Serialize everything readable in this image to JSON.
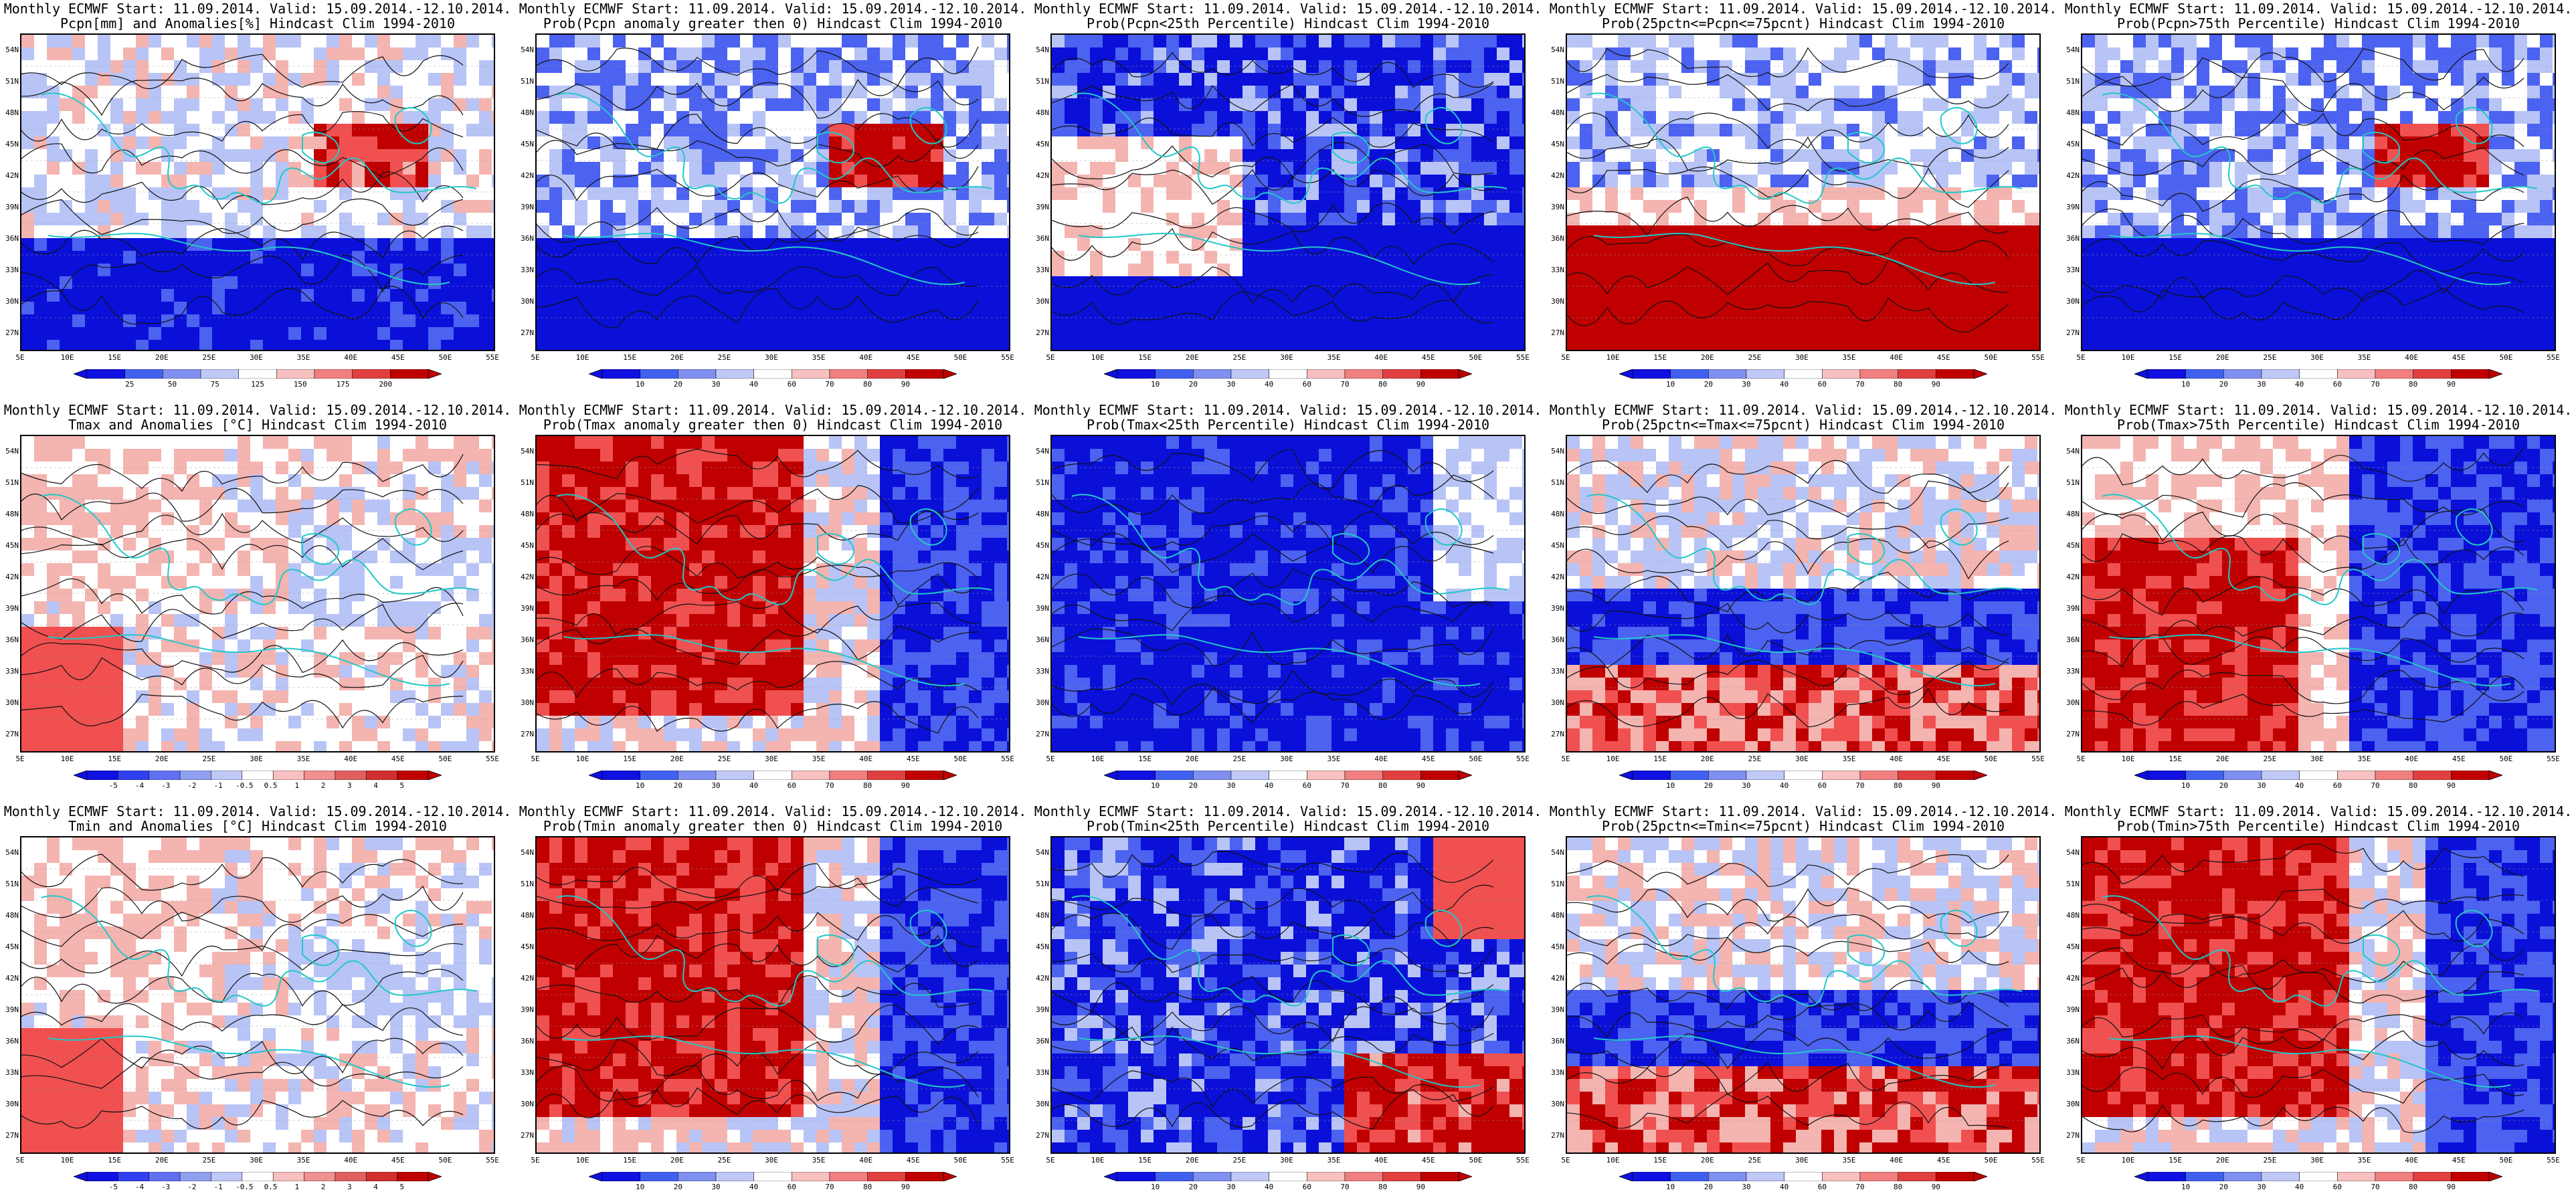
{
  "header_prefix": "Monthly ECMWF Start: 11.09.2014. Valid: 15.09.2014.-12.10.2014.",
  "lat_labels": [
    "54N",
    "51N",
    "48N",
    "45N",
    "42N",
    "39N",
    "36N",
    "33N",
    "30N",
    "27N"
  ],
  "lon_labels": [
    "5E",
    "10E",
    "15E",
    "20E",
    "25E",
    "30E",
    "35E",
    "40E",
    "45E",
    "50E",
    "55E"
  ],
  "colorbar_prob_labels": [
    "10",
    "20",
    "30",
    "40",
    "60",
    "70",
    "80",
    "90"
  ],
  "colorbar_prcp_labels": [
    "25",
    "50",
    "75",
    "125",
    "150",
    "175",
    "200"
  ],
  "colorbar_temp_labels": [
    "-5",
    "-4",
    "-3",
    "-2",
    "-1",
    "-0.5",
    "0.5",
    "1",
    "2",
    "3",
    "4",
    "5"
  ],
  "colors": {
    "deep_blue": "#0a10d8",
    "mid_blue": "#4c62f0",
    "light_blue": "#b8c4f6",
    "white": "#ffffff",
    "light_red": "#f4b4b0",
    "mid_red": "#f05050",
    "deep_red": "#c00000",
    "coast": "#22c8c8"
  },
  "panels": [
    {
      "title1": "Monthly ECMWF Start: 11.09.2014. Valid: 15.09.2014.-12.10.2014.",
      "title2": "Pcpn[mm] and Anomalies[%] Hindcast Clim 1994-2010",
      "variable": "precipitation",
      "scheme": "prcp_anom"
    },
    {
      "title1": "Monthly ECMWF Start: 11.09.2014. Valid: 15.09.2014.-12.10.2014.",
      "title2": "Prob(Pcpn anomaly greater then 0) Hindcast Clim 1994-2010",
      "variable": "precipitation",
      "scheme": "prob_bluewet"
    },
    {
      "title1": "Monthly ECMWF Start: 11.09.2014. Valid: 15.09.2014.-12.10.2014.",
      "title2": "Prob(Pcpn<25th Percentile) Hindcast Clim 1994-2010",
      "variable": "precipitation",
      "scheme": "prob_bluedry"
    },
    {
      "title1": "Monthly ECMWF Start: 11.09.2014. Valid: 15.09.2014.-12.10.2014.",
      "title2": "Prob(25pctn<=Pcpn<=75pcnt) Hindcast Clim 1994-2010",
      "variable": "precipitation",
      "scheme": "prob_redsouth"
    },
    {
      "title1": "Monthly ECMWF Start: 11.09.2014. Valid: 15.09.2014.-12.10.2014.",
      "title2": "Prob(Pcpn>75th Percentile) Hindcast Clim 1994-2010",
      "variable": "precipitation",
      "scheme": "prob_bluewet"
    },
    {
      "title1": "Monthly ECMWF Start: 11.09.2014. Valid: 15.09.2014.-12.10.2014.",
      "title2": "Tmax and Anomalies [°C] Hindcast Clim 1994-2010",
      "variable": "tmax",
      "scheme": "temp_anom_light"
    },
    {
      "title1": "Monthly ECMWF Start: 11.09.2014. Valid: 15.09.2014.-12.10.2014.",
      "title2": "Prob(Tmax anomaly greater then 0) Hindcast Clim 1994-2010",
      "variable": "tmax",
      "scheme": "prob_redwarm"
    },
    {
      "title1": "Monthly ECMWF Start: 11.09.2014. Valid: 15.09.2014.-12.10.2014.",
      "title2": "Prob(Tmax<25th Percentile) Hindcast Clim 1994-2010",
      "variable": "tmax",
      "scheme": "prob_allblue"
    },
    {
      "title1": "Monthly ECMWF Start: 11.09.2014. Valid: 15.09.2014.-12.10.2014.",
      "title2": "Prob(25pctn<=Tmax<=75pcnt) Hindcast Clim 1994-2010",
      "variable": "tmax",
      "scheme": "prob_mixed"
    },
    {
      "title1": "Monthly ECMWF Start: 11.09.2014. Valid: 15.09.2014.-12.10.2014.",
      "title2": "Prob(Tmax>75th Percentile) Hindcast Clim 1994-2010",
      "variable": "tmax",
      "scheme": "prob_redwest"
    },
    {
      "title1": "Monthly ECMWF Start: 11.09.2014. Valid: 15.09.2014.-12.10.2014.",
      "title2": "Tmin and Anomalies [°C] Hindcast Clim 1994-2010",
      "variable": "tmin",
      "scheme": "temp_anom_light"
    },
    {
      "title1": "Monthly ECMWF Start: 11.09.2014. Valid: 15.09.2014.-12.10.2014.",
      "title2": "Prob(Tmin anomaly greater then 0) Hindcast Clim 1994-2010",
      "variable": "tmin",
      "scheme": "prob_redwarm"
    },
    {
      "title1": "Monthly ECMWF Start: 11.09.2014. Valid: 15.09.2014.-12.10.2014.",
      "title2": "Prob(Tmin<25th Percentile) Hindcast Clim 1994-2010",
      "variable": "tmin",
      "scheme": "prob_mixedblue"
    },
    {
      "title1": "Monthly ECMWF Start: 11.09.2014. Valid: 15.09.2014.-12.10.2014.",
      "title2": "Prob(25pctn<=Tmin<=75pcnt) Hindcast Clim 1994-2010",
      "variable": "tmin",
      "scheme": "prob_mixed"
    },
    {
      "title1": "Monthly ECMWF Start: 11.09.2014. Valid: 15.09.2014.-12.10.2014.",
      "title2": "Prob(Tmin>75th Percentile) Hindcast Clim 1994-2010",
      "variable": "tmin",
      "scheme": "prob_redwarm"
    }
  ]
}
